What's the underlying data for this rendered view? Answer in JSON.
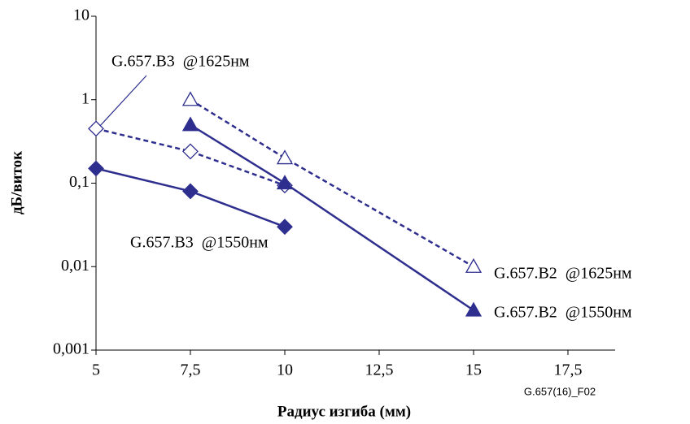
{
  "chart_data": {
    "type": "line",
    "x_label": "Радиус изгиба (мм)",
    "y_label": "дБ/виток",
    "note": "G.657(16)_F02",
    "log_y": true,
    "xlim": [
      5,
      18.75
    ],
    "ylim": [
      0.001,
      10
    ],
    "xticks": [
      5,
      {
        "value": 7.5,
        "label": "7,5"
      },
      10,
      {
        "value": 12.5,
        "label": "12,5"
      },
      15,
      {
        "value": 17.5,
        "label": "17,5"
      }
    ],
    "yticks": [
      {
        "value": 0.001,
        "label": "0,001"
      },
      {
        "value": 0.01,
        "label": "0,01"
      },
      {
        "value": 0.1,
        "label": "0,1"
      },
      1,
      10
    ],
    "series": [
      {
        "name": "G.657.B3  @1550нм",
        "color": "#2e2e8f",
        "line_style": "solid",
        "marker": "diamond",
        "filled": true,
        "x": [
          5,
          7.5,
          10
        ],
        "values": [
          0.15,
          0.08,
          0.03
        ]
      },
      {
        "name": "G.657.B3  @1625нм",
        "color": "#2e2e8f",
        "line_style": "dashed",
        "marker": "diamond",
        "filled": false,
        "x": [
          5,
          7.5,
          10
        ],
        "values": [
          0.45,
          0.24,
          0.094
        ]
      },
      {
        "name": "G.657.B2  @1625нм",
        "color": "#2e2e8f",
        "line_style": "dashed",
        "marker": "triangle",
        "filled": false,
        "x": [
          7.5,
          10,
          15
        ],
        "values": [
          1,
          0.2,
          0.01
        ]
      },
      {
        "name": "G.657.B2  @1550нм",
        "color": "#2e2e8f",
        "line_style": "solid",
        "marker": "triangle",
        "filled": true,
        "x": [
          7.5,
          10,
          15
        ],
        "values": [
          0.5,
          0.1,
          0.003
        ]
      }
    ]
  }
}
